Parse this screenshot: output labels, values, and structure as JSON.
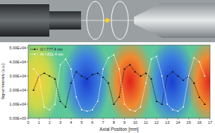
{
  "chart_data": {
    "type": "line",
    "x_label": "Axial Position [mm]",
    "y_label": "Signal Intensity [a.u.]",
    "x": [
      0.5,
      1,
      1.5,
      2,
      2.5,
      3,
      3.5,
      4,
      4.5,
      5,
      5.5,
      6,
      6.5,
      7,
      7.5,
      8,
      8.5,
      9,
      9.5,
      10,
      10.5,
      11,
      11.5,
      12,
      12.5,
      13,
      13.5,
      14,
      14.5,
      15,
      15.5,
      16,
      16.5
    ],
    "series": [
      {
        "name": "O I 777.4 nm",
        "color": "#111111",
        "marker": "triangle",
        "line_style": "dotted",
        "values": [
          20000,
          30000,
          32000,
          30000,
          28000,
          12000,
          8000,
          25000,
          33000,
          30000,
          28000,
          31000,
          32000,
          29000,
          25000,
          10000,
          15000,
          35000,
          38000,
          33000,
          30000,
          32000,
          28000,
          12000,
          10000,
          30000,
          33000,
          30000,
          27000,
          30000,
          25000,
          15000,
          10000
        ]
      },
      {
        "name": "Ar I 811.4 nm",
        "color": "#ffffff",
        "marker": "circle",
        "line_style": "dotted",
        "values": [
          35000,
          30000,
          8000,
          6000,
          10000,
          38000,
          42000,
          35000,
          15000,
          6000,
          5000,
          6000,
          12000,
          35000,
          43000,
          45000,
          35000,
          10000,
          6000,
          5000,
          8000,
          25000,
          42000,
          44000,
          30000,
          10000,
          6000,
          5000,
          8000,
          30000,
          43000,
          40000,
          30000
        ]
      }
    ],
    "xlim": [
      0,
      17
    ],
    "xticks": [
      0,
      1,
      2,
      3,
      4,
      5,
      6,
      7,
      8,
      9,
      10,
      11,
      12,
      13,
      14,
      15,
      16,
      17
    ],
    "ylim": [
      0,
      52000
    ],
    "yticks": [
      {
        "value": 0,
        "label": "0,00E+00"
      },
      {
        "value": 10000,
        "label": "1,00E+04"
      },
      {
        "value": 20000,
        "label": "2,00E+04"
      },
      {
        "value": 30000,
        "label": "3,00E+04"
      },
      {
        "value": 40000,
        "label": "4,00E+04"
      },
      {
        "value": 50000,
        "label": "5,00E+04"
      }
    ],
    "legend": "upper-left",
    "grid": false
  }
}
